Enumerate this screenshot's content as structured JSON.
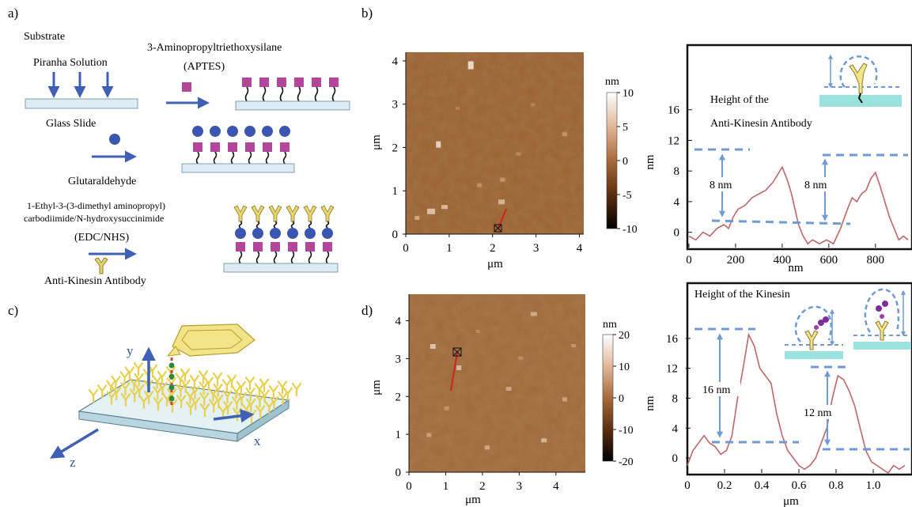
{
  "panels": {
    "a": "a)",
    "b": "b)",
    "c": "c)",
    "d": "d)"
  },
  "panel_a": {
    "substrate": "Substrate",
    "piranha": "Piranha Solution",
    "glass_slide": "Glass Slide",
    "aptes_name": "3-Aminopropyltriethoxysilane",
    "aptes_abbr": "(APTES)",
    "glutaraldehyde": "Glutaraldehyde",
    "edc_line1": "1-Ethyl-3-(3-dimethyl aminopropyl)",
    "edc_line2": "carbodiimide/N-hydroxysuccinimide",
    "edc_abbr": "(EDC/NHS)",
    "antibody": "Anti-Kinesin Antibody"
  },
  "panel_c": {
    "y": "y",
    "x": "x",
    "z": "z"
  },
  "colors": {
    "arrow": "#3f60b4",
    "slide": "#dcecf2",
    "square": "#b2479a",
    "circle": "#3a56b0",
    "antibody": "#e8d56a",
    "dash": "#6f9ad6",
    "profile": "#c0666b",
    "afm_mid": "#9c6230"
  },
  "chart_data": [
    {
      "type": "heatmap",
      "panel": "b",
      "xlabel": "μm",
      "ylabel": "μm",
      "xticks": [
        "0",
        "1",
        "2",
        "3",
        "4"
      ],
      "yticks": [
        "0",
        "1",
        "2",
        "3",
        "4"
      ],
      "colorbar_unit": "nm",
      "colorbar_ticks": [
        "10",
        "5",
        "0",
        "-5",
        "-10"
      ]
    },
    {
      "type": "line",
      "panel": "b",
      "title": "Height of the",
      "subtitle": "Anti-Kinesin Antibody",
      "xlabel": "nm",
      "ylabel": "nm",
      "xticks": [
        "0",
        "200",
        "400",
        "600",
        "800"
      ],
      "yticks": [
        "16",
        "12",
        "8",
        "4",
        "0"
      ],
      "xlim": [
        0,
        950
      ],
      "ylim": [
        -2,
        20
      ],
      "annotations": [
        "8 nm",
        "8 nm"
      ],
      "x": [
        0,
        30,
        60,
        90,
        120,
        150,
        170,
        190,
        210,
        240,
        270,
        300,
        330,
        360,
        380,
        400,
        420,
        440,
        455,
        470,
        490,
        510,
        530,
        560,
        590,
        620,
        650,
        680,
        700,
        720,
        740,
        760,
        780,
        800,
        820,
        840,
        860,
        880,
        900,
        920,
        940
      ],
      "y": [
        -0.5,
        -1,
        0,
        -0.5,
        0.5,
        1,
        0.5,
        2,
        3,
        3.5,
        4.5,
        5,
        5.5,
        6.5,
        7.5,
        8.5,
        7,
        5,
        3,
        1,
        -0.5,
        -1.5,
        -1,
        -1.5,
        -1,
        -1.5,
        0.5,
        3,
        4.5,
        4,
        5,
        5.5,
        7,
        7.8,
        6,
        4,
        2,
        0.5,
        -1,
        -0.5,
        -1
      ]
    },
    {
      "type": "heatmap",
      "panel": "d",
      "xlabel": "μm",
      "ylabel": "μm",
      "xticks": [
        "0",
        "1",
        "2",
        "3",
        "4"
      ],
      "yticks": [
        "0",
        "1",
        "2",
        "3",
        "4"
      ],
      "colorbar_unit": "nm",
      "colorbar_ticks": [
        "20",
        "10",
        "0",
        "-10",
        "-20"
      ]
    },
    {
      "type": "line",
      "panel": "d",
      "title": "Height of the Kinesin",
      "xlabel": "μm",
      "ylabel": "nm",
      "xticks": [
        "0",
        "0.2",
        "0.4",
        "0.6",
        "0.8",
        "1.0"
      ],
      "yticks": [
        "16",
        "12",
        "8",
        "4",
        "0"
      ],
      "xlim": [
        0,
        1.2
      ],
      "ylim": [
        -2,
        20
      ],
      "annotations": [
        "16 nm",
        "12 nm"
      ],
      "x": [
        0,
        0.03,
        0.06,
        0.09,
        0.12,
        0.15,
        0.18,
        0.21,
        0.24,
        0.27,
        0.3,
        0.33,
        0.36,
        0.39,
        0.42,
        0.45,
        0.48,
        0.51,
        0.54,
        0.57,
        0.6,
        0.63,
        0.66,
        0.69,
        0.72,
        0.75,
        0.78,
        0.81,
        0.84,
        0.87,
        0.9,
        0.93,
        0.96,
        0.99,
        1.02,
        1.05,
        1.08,
        1.11,
        1.14,
        1.17
      ],
      "y": [
        -1,
        1,
        2,
        3,
        2,
        1.5,
        0.5,
        1,
        3,
        8,
        12,
        16.5,
        15,
        12,
        11,
        10,
        6,
        3,
        1,
        0,
        -1,
        -1.5,
        -1,
        0,
        2,
        4,
        8,
        11,
        10.5,
        9,
        7,
        4,
        1,
        -0.5,
        -1,
        -1.5,
        -2,
        -1,
        -1.5,
        -1
      ]
    }
  ]
}
